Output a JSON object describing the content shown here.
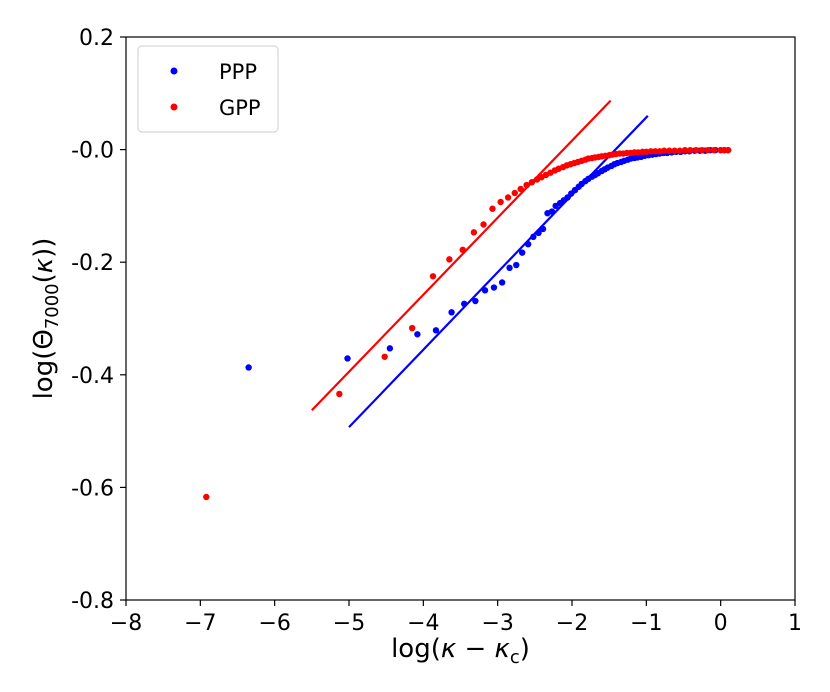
{
  "chart_data": {
    "type": "scatter",
    "xlabel_parts": {
      "pre": "log(",
      "kappa": "κ",
      "minus": " − ",
      "kappa2": "κ",
      "sub": "c",
      "post": ")"
    },
    "ylabel_parts": {
      "pre": "log(Θ",
      "sub": "7000",
      "mid": "(",
      "kappa": "κ",
      "post": "))"
    },
    "xlim": [
      -8,
      1
    ],
    "ylim": [
      -0.8,
      0.2
    ],
    "x_ticks": [
      {
        "value": -8,
        "label": "−8"
      },
      {
        "value": -7,
        "label": "−7"
      },
      {
        "value": -6,
        "label": "−6"
      },
      {
        "value": -5,
        "label": "−5"
      },
      {
        "value": -4,
        "label": "−4"
      },
      {
        "value": -3,
        "label": "−3"
      },
      {
        "value": -2,
        "label": "−2"
      },
      {
        "value": -1,
        "label": "−1"
      },
      {
        "value": 0,
        "label": "0"
      },
      {
        "value": 1,
        "label": "1"
      }
    ],
    "y_ticks": [
      {
        "value": 0.2,
        "label": "0.2"
      },
      {
        "value": 0.0,
        "label": "-0.0"
      },
      {
        "value": -0.2,
        "label": "-0.2"
      },
      {
        "value": -0.4,
        "label": "-0.4"
      },
      {
        "value": -0.6,
        "label": "-0.6"
      },
      {
        "value": -0.8,
        "label": "-0.8"
      }
    ],
    "grid": false,
    "legend": {
      "position": "top-left"
    },
    "series": [
      {
        "name": "PPP",
        "color": "#0000ff",
        "points": [
          [
            -6.35,
            -0.387
          ],
          [
            -5.02,
            -0.371
          ],
          [
            -4.45,
            -0.353
          ],
          [
            -4.08,
            -0.328
          ],
          [
            -3.83,
            -0.321
          ],
          [
            -3.62,
            -0.289
          ],
          [
            -3.45,
            -0.274
          ],
          [
            -3.3,
            -0.269
          ],
          [
            -3.17,
            -0.25
          ],
          [
            -3.05,
            -0.245
          ],
          [
            -2.94,
            -0.236
          ],
          [
            -2.84,
            -0.21
          ],
          [
            -2.75,
            -0.205
          ],
          [
            -2.67,
            -0.183
          ],
          [
            -2.59,
            -0.168
          ],
          [
            -2.52,
            -0.155
          ],
          [
            -2.45,
            -0.148
          ],
          [
            -2.39,
            -0.141
          ],
          [
            -2.33,
            -0.113
          ],
          [
            -2.27,
            -0.11
          ],
          [
            -2.22,
            -0.1
          ],
          [
            -2.16,
            -0.095
          ],
          [
            -2.11,
            -0.09
          ],
          [
            -2.06,
            -0.085
          ],
          [
            -2.01,
            -0.078
          ],
          [
            -1.96,
            -0.072
          ],
          [
            -1.91,
            -0.066
          ],
          [
            -1.87,
            -0.061
          ],
          [
            -1.82,
            -0.056
          ],
          [
            -1.78,
            -0.052
          ],
          [
            -1.73,
            -0.048
          ],
          [
            -1.69,
            -0.045
          ],
          [
            -1.65,
            -0.042
          ],
          [
            -1.6,
            -0.038
          ],
          [
            -1.56,
            -0.035
          ],
          [
            -1.52,
            -0.032
          ],
          [
            -1.47,
            -0.029
          ],
          [
            -1.43,
            -0.026
          ],
          [
            -1.39,
            -0.024
          ],
          [
            -1.34,
            -0.022
          ],
          [
            -1.3,
            -0.02
          ],
          [
            -1.25,
            -0.018
          ],
          [
            -1.21,
            -0.016
          ],
          [
            -1.16,
            -0.015
          ],
          [
            -1.12,
            -0.014
          ],
          [
            -1.07,
            -0.013
          ],
          [
            -1.02,
            -0.011
          ],
          [
            -0.97,
            -0.01
          ],
          [
            -0.92,
            -0.009
          ],
          [
            -0.87,
            -0.008
          ],
          [
            -0.82,
            -0.007
          ],
          [
            -0.77,
            -0.006
          ],
          [
            -0.72,
            -0.006
          ],
          [
            -0.66,
            -0.005
          ],
          [
            -0.6,
            -0.004
          ],
          [
            -0.54,
            -0.004
          ],
          [
            -0.48,
            -0.003
          ],
          [
            -0.42,
            -0.003
          ],
          [
            -0.35,
            -0.002
          ],
          [
            -0.28,
            -0.002
          ],
          [
            -0.21,
            -0.002
          ],
          [
            -0.14,
            -0.001
          ],
          [
            -0.07,
            -0.001
          ],
          [
            0.0,
            -0.001
          ],
          [
            0.05,
            -0.001
          ],
          [
            0.1,
            -0.001
          ]
        ],
        "fit_line": [
          [
            -5.0,
            -0.493
          ],
          [
            -0.98,
            0.06
          ]
        ]
      },
      {
        "name": "GPP",
        "color": "#ff0000",
        "points": [
          [
            -6.92,
            -0.617
          ],
          [
            -5.13,
            -0.434
          ],
          [
            -4.52,
            -0.368
          ],
          [
            -4.15,
            -0.317
          ],
          [
            -3.87,
            -0.225
          ],
          [
            -3.65,
            -0.195
          ],
          [
            -3.47,
            -0.178
          ],
          [
            -3.32,
            -0.147
          ],
          [
            -3.19,
            -0.133
          ],
          [
            -3.07,
            -0.105
          ],
          [
            -2.96,
            -0.093
          ],
          [
            -2.86,
            -0.085
          ],
          [
            -2.77,
            -0.077
          ],
          [
            -2.69,
            -0.07
          ],
          [
            -2.61,
            -0.063
          ],
          [
            -2.54,
            -0.058
          ],
          [
            -2.47,
            -0.053
          ],
          [
            -2.41,
            -0.049
          ],
          [
            -2.35,
            -0.045
          ],
          [
            -2.29,
            -0.041
          ],
          [
            -2.23,
            -0.037
          ],
          [
            -2.18,
            -0.034
          ],
          [
            -2.12,
            -0.031
          ],
          [
            -2.07,
            -0.028
          ],
          [
            -2.02,
            -0.026
          ],
          [
            -1.97,
            -0.024
          ],
          [
            -1.92,
            -0.022
          ],
          [
            -1.87,
            -0.02
          ],
          [
            -1.82,
            -0.018
          ],
          [
            -1.78,
            -0.016
          ],
          [
            -1.73,
            -0.015
          ],
          [
            -1.69,
            -0.014
          ],
          [
            -1.64,
            -0.013
          ],
          [
            -1.6,
            -0.012
          ],
          [
            -1.55,
            -0.011
          ],
          [
            -1.5,
            -0.01
          ],
          [
            -1.46,
            -0.009
          ],
          [
            -1.41,
            -0.008
          ],
          [
            -1.36,
            -0.007
          ],
          [
            -1.31,
            -0.007
          ],
          [
            -1.26,
            -0.006
          ],
          [
            -1.21,
            -0.006
          ],
          [
            -1.16,
            -0.005
          ],
          [
            -1.11,
            -0.005
          ],
          [
            -1.05,
            -0.004
          ],
          [
            -1.0,
            -0.004
          ],
          [
            -0.94,
            -0.003
          ],
          [
            -0.88,
            -0.003
          ],
          [
            -0.82,
            -0.003
          ],
          [
            -0.76,
            -0.002
          ],
          [
            -0.69,
            -0.002
          ],
          [
            -0.62,
            -0.002
          ],
          [
            -0.55,
            -0.002
          ],
          [
            -0.48,
            -0.001
          ],
          [
            -0.41,
            -0.001
          ],
          [
            -0.33,
            -0.001
          ],
          [
            -0.25,
            -0.001
          ],
          [
            -0.17,
            -0.001
          ],
          [
            -0.09,
            -0.001
          ],
          [
            0.0,
            -0.001
          ],
          [
            0.05,
            -0.001
          ],
          [
            0.1,
            -0.001
          ]
        ],
        "fit_line": [
          [
            -5.5,
            -0.463
          ],
          [
            -1.48,
            0.087
          ]
        ]
      }
    ]
  }
}
